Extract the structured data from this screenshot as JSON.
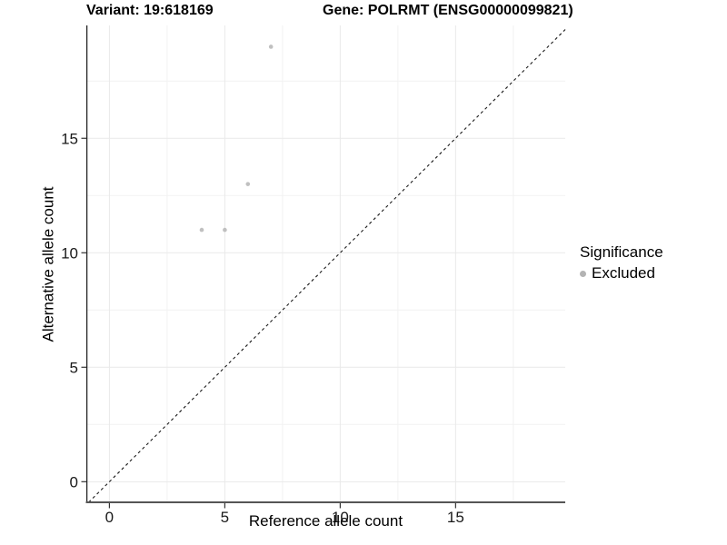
{
  "chart_data": {
    "type": "scatter",
    "title": {
      "variant": "Variant: 19:618169",
      "gene": "Gene: POLRMT (ENSG00000099821)"
    },
    "xlabel": "Reference allele count",
    "ylabel": "Alternative allele count",
    "xlim": [
      -1,
      19.75
    ],
    "ylim": [
      -0.9,
      19.93
    ],
    "x_major_ticks": [
      0,
      5,
      10,
      15
    ],
    "y_major_ticks": [
      0,
      5,
      10,
      15
    ],
    "x_minor_ticks": [
      2.5,
      7.5,
      12.5,
      17.5
    ],
    "y_minor_ticks": [
      2.5,
      7.5,
      12.5,
      17.5
    ],
    "grid": true,
    "identity_line": {
      "equation": "y = x",
      "style": "dashed",
      "color": "#1a1a1a"
    },
    "series": [
      {
        "name": "Excluded",
        "color": "#c0c0c0",
        "points": [
          {
            "x": 4,
            "y": 11
          },
          {
            "x": 5,
            "y": 11
          },
          {
            "x": 6,
            "y": 13
          },
          {
            "x": 7,
            "y": 19
          }
        ]
      }
    ],
    "legend": {
      "title": "Significance",
      "position": "right",
      "items": [
        {
          "label": "Excluded",
          "color": "#b3b3b3"
        }
      ]
    },
    "colors": {
      "background": "#ffffff",
      "axis_line": "#333333",
      "grid_major": "#e9e9e9",
      "grid_minor": "#f2f2f2",
      "text": "#1a1a1a"
    }
  }
}
